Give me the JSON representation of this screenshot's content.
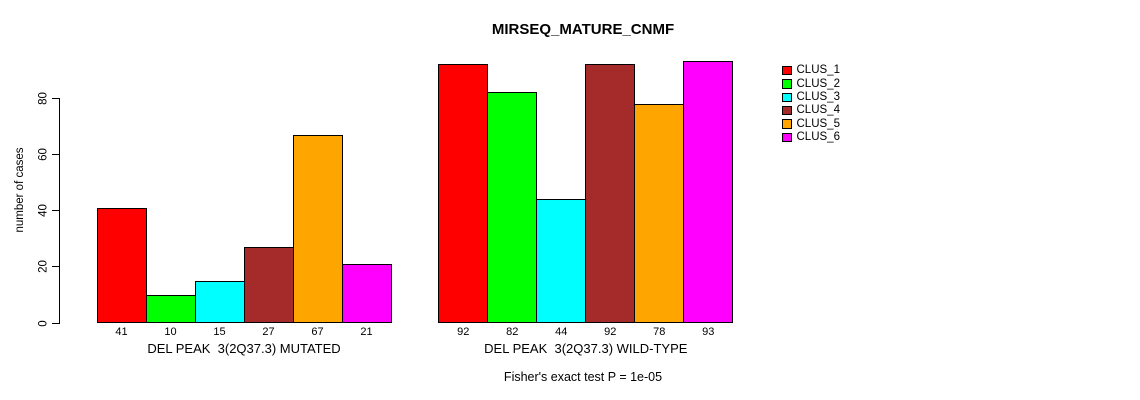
{
  "chart_data": {
    "type": "bar",
    "title": "MIRSEQ_MATURE_CNMF",
    "ylabel": "number of cases",
    "ylim": [
      0,
      80
    ],
    "yticks": [
      0,
      20,
      40,
      60,
      80
    ],
    "grid": false,
    "bar_value_labels_shown": true,
    "clusters": [
      "CLUS_1",
      "CLUS_2",
      "CLUS_3",
      "CLUS_4",
      "CLUS_5",
      "CLUS_6"
    ],
    "colors": [
      "#FF0000",
      "#00FF00",
      "#00FFFF",
      "#A52A2A",
      "#FFA500",
      "#FF00FF"
    ],
    "groups": [
      {
        "label": "DEL PEAK  3(2Q37.3) MUTATED",
        "values": [
          41,
          10,
          15,
          27,
          67,
          21
        ]
      },
      {
        "label": "DEL PEAK  3(2Q37.3) WILD-TYPE",
        "values": [
          92,
          82,
          44,
          92,
          78,
          93
        ]
      }
    ],
    "legend": {
      "position": "right",
      "entries": [
        "CLUS_1",
        "CLUS_2",
        "CLUS_3",
        "CLUS_4",
        "CLUS_5",
        "CLUS_6"
      ]
    },
    "footnote": "Fisher's exact test P = 1e-05"
  }
}
